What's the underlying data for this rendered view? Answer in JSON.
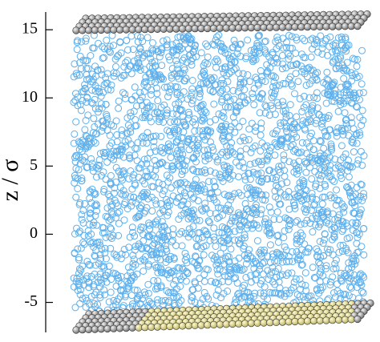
{
  "axis": {
    "label": "z / σ",
    "lim": [
      -7.2,
      16.3
    ],
    "ticks": [
      -5,
      0,
      5,
      10,
      15
    ]
  }
}
